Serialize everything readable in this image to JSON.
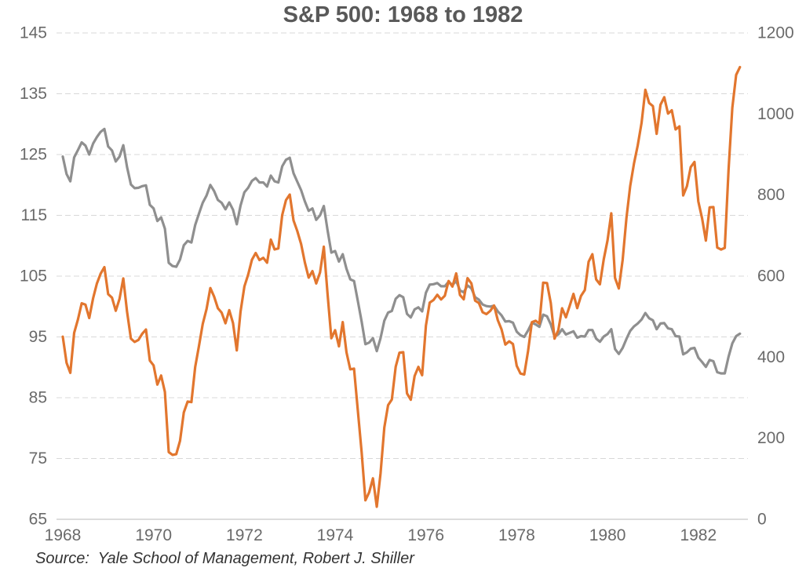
{
  "title": "S&P 500: 1968 to 1982",
  "source_note": "Source:  Yale School of Management, Robert J. Shiller",
  "colors": {
    "orange_series": "#E2762E",
    "gray_series": "#8F8F8F",
    "gridline": "#D8D8D8",
    "axis_line": "#C6C6C6",
    "tick_label": "#6A6A6A",
    "title_text": "#595959",
    "source_text": "#333333",
    "background": "#FFFFFF"
  },
  "chart_data": {
    "type": "line",
    "title": "S&P 500: 1968 to 1982",
    "frequency": "monthly",
    "x_start": "1968-01",
    "x_end": "1982-12",
    "grid": "horizontal dashed",
    "legend": "none",
    "x_axis": {
      "tick_labels": [
        "1968",
        "1970",
        "1972",
        "1974",
        "1976",
        "1978",
        "1980",
        "1982"
      ],
      "months_between_ticks": 24
    },
    "left_axis": {
      "min": 65,
      "max": 145,
      "ticks": [
        145,
        135,
        125,
        115,
        105,
        95,
        85,
        75,
        65
      ],
      "tick_labels": [
        "145",
        "135",
        "125",
        "115",
        "105",
        "95",
        "85",
        "75",
        "65"
      ]
    },
    "right_axis": {
      "min": 0,
      "max": 1200,
      "ticks": [
        1200,
        1000,
        800,
        600,
        400,
        200,
        0
      ],
      "tick_labels": [
        "1200",
        "1000",
        "800",
        "600",
        "400",
        "200",
        "0"
      ]
    },
    "series": [
      {
        "id": "gray-series",
        "name": "gray series (right axis)",
        "axis": "right",
        "color": "#8F8F8F",
        "values": [
          895,
          852,
          834,
          893,
          911,
          930,
          922,
          900,
          927,
          943,
          956,
          963,
          920,
          910,
          883,
          895,
          923,
          869,
          826,
          817,
          818,
          822,
          824,
          776,
          767,
          736,
          745,
          717,
          633,
          625,
          623,
          641,
          676,
          687,
          683,
          726,
          754,
          781,
          799,
          825,
          810,
          788,
          781,
          765,
          782,
          764,
          728,
          774,
          807,
          818,
          835,
          842,
          831,
          831,
          821,
          848,
          834,
          831,
          871,
          887,
          892,
          854,
          833,
          812,
          784,
          761,
          767,
          739,
          750,
          773,
          713,
          658,
          662,
          636,
          654,
          618,
          592,
          588,
          538,
          488,
          432,
          436,
          447,
          415,
          447,
          490,
          510,
          514,
          544,
          553,
          548,
          507,
          498,
          518,
          523,
          513,
          559,
          579,
          580,
          583,
          575,
          575,
          586,
          578,
          588,
          565,
          560,
          577,
          570,
          548,
          542,
          530,
          526,
          525,
          527,
          513,
          503,
          488,
          489,
          485,
          463,
          454,
          450,
          466,
          485,
          481,
          475,
          505,
          501,
          481,
          451,
          456,
          469,
          456,
          460,
          464,
          448,
          452,
          451,
          467,
          467,
          446,
          438,
          451,
          457,
          469,
          420,
          408,
          423,
          445,
          465,
          476,
          483,
          493,
          509,
          496,
          491,
          469,
          483,
          484,
          471,
          469,
          452,
          451,
          407,
          412,
          421,
          423,
          399,
          388,
          376,
          393,
          390,
          363,
          360,
          360,
          401,
          434,
          452,
          458
        ]
      },
      {
        "id": "orange-series",
        "name": "orange series (left axis)",
        "axis": "left",
        "color": "#E2762E",
        "values": [
          95.04,
          90.75,
          89.09,
          95.67,
          97.87,
          100.53,
          100.3,
          98.11,
          101.34,
          103.76,
          105.4,
          106.48,
          102.04,
          101.46,
          99.3,
          101.26,
          104.62,
          99.14,
          94.71,
          94.18,
          94.51,
          95.52,
          96.21,
          91.11,
          90.31,
          87.16,
          88.65,
          85.95,
          76.06,
          75.59,
          75.72,
          77.92,
          82.58,
          84.37,
          84.28,
          90.05,
          93.49,
          97.11,
          99.6,
          103.04,
          101.64,
          99.72,
          99.0,
          97.24,
          99.4,
          97.29,
          92.78,
          99.17,
          103.3,
          105.24,
          107.69,
          108.81,
          107.65,
          108.01,
          107.21,
          111.01,
          109.39,
          109.56,
          115.05,
          117.5,
          118.42,
          114.16,
          112.42,
          110.27,
          107.22,
          104.75,
          105.83,
          103.8,
          105.61,
          109.84,
          102.03,
          94.78,
          96.11,
          93.45,
          97.44,
          92.46,
          89.67,
          89.79,
          82.82,
          76.03,
          68.12,
          69.44,
          71.74,
          67.07,
          72.56,
          80.1,
          83.78,
          84.72,
          90.1,
          92.4,
          92.49,
          85.71,
          84.67,
          88.57,
          90.07,
          88.7,
          96.86,
          100.64,
          101.08,
          101.93,
          101.16,
          101.77,
          104.2,
          103.29,
          105.45,
          101.89,
          101.19,
          104.66,
          103.81,
          100.96,
          100.57,
          99.05,
          98.76,
          99.29,
          100.18,
          97.75,
          96.23,
          93.74,
          94.28,
          93.82,
          90.25,
          88.98,
          88.82,
          92.71,
          97.41,
          97.66,
          97.19,
          103.92,
          103.86,
          100.58,
          94.71,
          96.11,
          99.71,
          98.23,
          100.11,
          102.07,
          99.73,
          101.73,
          102.71,
          107.36,
          108.6,
          104.47,
          103.66,
          107.78,
          110.87,
          115.34,
          104.69,
          102.97,
          107.69,
          114.55,
          119.83,
          123.5,
          126.51,
          130.22,
          135.65,
          133.48,
          132.97,
          128.4,
          133.19,
          134.43,
          131.73,
          132.28,
          129.13,
          129.63,
          118.27,
          119.8,
          122.92,
          123.79,
          117.28,
          114.5,
          110.84,
          116.31,
          116.35,
          109.7,
          109.38,
          109.65,
          122.43,
          132.66,
          138.1,
          139.37
        ]
      }
    ]
  }
}
